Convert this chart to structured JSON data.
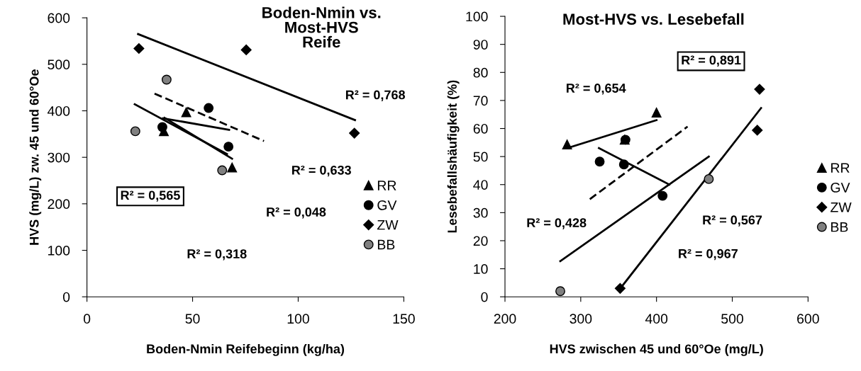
{
  "chart_data": [
    {
      "type": "scatter",
      "title": "Boden-Nmin vs.\nMost-HVS\nReife",
      "xlabel": "Boden-Nmin Reifebeginn (kg/ha)",
      "ylabel": "HVS (mg/L) zw. 45 und 60°Oe",
      "xlim": [
        0,
        150
      ],
      "xticks": [
        0,
        50,
        100,
        150
      ],
      "ylim": [
        0,
        600
      ],
      "yticks": [
        0,
        100,
        200,
        300,
        400,
        500,
        600
      ],
      "legend": "bottom right",
      "grid": false,
      "annotations": [
        "R² = 0,768",
        "R² = 0,633",
        "R² = 0,048",
        "R² = 0,318",
        "R² = 0,565"
      ],
      "series": [
        {
          "name": "RR",
          "color": "#000000",
          "marker": "triangle",
          "x": [
            36.4,
            47,
            68.7
          ],
          "values": [
            356,
            397,
            278
          ]
        },
        {
          "name": "GV",
          "color": "#000000",
          "marker": "circle",
          "x": [
            35.7,
            57.6,
            67
          ],
          "values": [
            365,
            406,
            323
          ]
        },
        {
          "name": "ZW",
          "color": "#000000",
          "marker": "diamond",
          "x": [
            24.6,
            75.4,
            126.6
          ],
          "values": [
            534,
            531,
            352
          ]
        },
        {
          "name": "BB",
          "color": "#808080",
          "marker": "circle",
          "x": [
            22.9,
            37.7,
            64
          ],
          "values": [
            356,
            467,
            272
          ]
        },
        {
          "type": "line",
          "color": "#000000",
          "line_style": "solid",
          "x": [
            24.2,
            126.9
          ],
          "values": [
            565,
            380
          ]
        },
        {
          "type": "line",
          "color": "#000000",
          "line_style": "dashed",
          "x": [
            32,
            83.8
          ],
          "values": [
            437,
            335
          ]
        },
        {
          "type": "line",
          "color": "#000000",
          "line_style": "solid",
          "x": [
            22.6,
            66.3
          ],
          "values": [
            414,
            307
          ]
        },
        {
          "type": "line",
          "color": "#000000",
          "line_style": "solid",
          "x": [
            36,
            67.3
          ],
          "values": [
            384,
            359
          ]
        },
        {
          "type": "line",
          "color": "#000000",
          "line_style": "solid",
          "x": [
            36.7,
            68.7
          ],
          "values": [
            385,
            297
          ]
        }
      ]
    },
    {
      "type": "scatter",
      "title": "Most-HVS vs. Lesebefall",
      "xlabel": "HVS zwischen 45 und 60°Oe (mg/L)",
      "ylabel": "Lesebefallshäufigkeit (%)",
      "xlim": [
        200,
        600
      ],
      "xticks": [
        200,
        300,
        400,
        500,
        600
      ],
      "ylim": [
        0,
        100
      ],
      "yticks": [
        0,
        10,
        20,
        30,
        40,
        50,
        60,
        70,
        80,
        90,
        100
      ],
      "legend": "right",
      "grid": false,
      "annotations": [
        "R² = 0,654",
        "R² = 0,891",
        "R² = 0,428",
        "R² = 0,567",
        "R² = 0,967"
      ],
      "series": [
        {
          "name": "RR",
          "color": "#000000",
          "marker": "triangle",
          "x": [
            282,
            358,
            400
          ],
          "values": [
            54.3,
            56,
            65.7
          ]
        },
        {
          "name": "GV",
          "color": "#000000",
          "marker": "circle",
          "x": [
            325,
            357,
            359,
            408
          ],
          "values": [
            48.2,
            47.2,
            56,
            36
          ]
        },
        {
          "name": "ZW",
          "color": "#000000",
          "marker": "diamond",
          "x": [
            352,
            536,
            533
          ],
          "values": [
            3,
            74,
            59.4
          ]
        },
        {
          "name": "BB",
          "color": "#808080",
          "marker": "circle",
          "x": [
            273,
            469
          ],
          "values": [
            2,
            42
          ]
        },
        {
          "type": "line",
          "color": "#000000",
          "line_style": "solid",
          "x": [
            282,
            400
          ],
          "values": [
            53,
            63
          ]
        },
        {
          "type": "line",
          "color": "#000000",
          "line_style": "solid",
          "x": [
            324,
            417
          ],
          "values": [
            53,
            40
          ]
        },
        {
          "type": "line",
          "color": "#000000",
          "line_style": "dashed",
          "x": [
            312,
            441
          ],
          "values": [
            34.8,
            60.7
          ]
        },
        {
          "type": "line",
          "color": "#000000",
          "line_style": "solid",
          "x": [
            273,
            469
          ],
          "values": [
            12.7,
            50
          ]
        },
        {
          "type": "line",
          "color": "#000000",
          "line_style": "solid",
          "x": [
            354,
            538
          ],
          "values": [
            3.6,
            67.3
          ]
        }
      ]
    }
  ]
}
